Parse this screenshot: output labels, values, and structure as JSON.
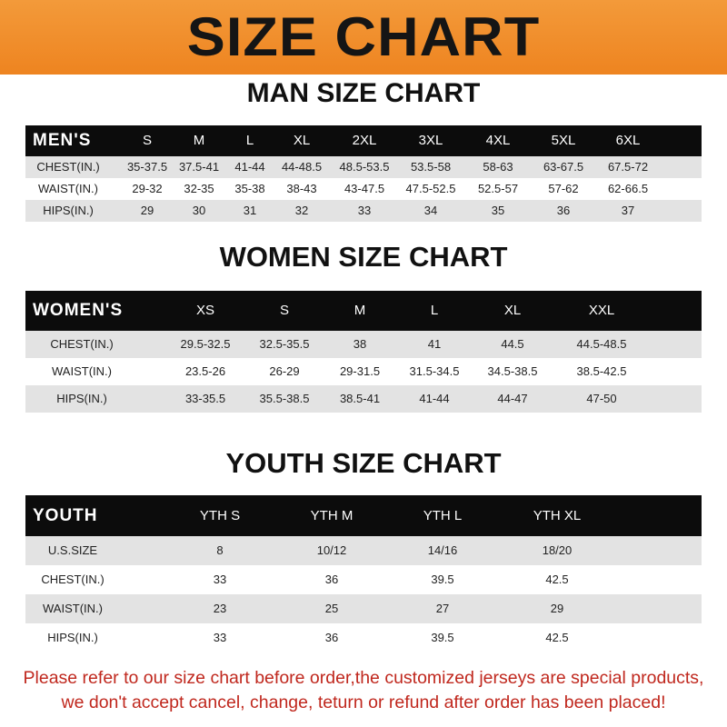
{
  "banner": {
    "title": "SIZE CHART",
    "color": "#ee8420"
  },
  "men": {
    "title": "MAN SIZE CHART",
    "header": [
      "MEN'S",
      "S",
      "M",
      "L",
      "XL",
      "2XL",
      "3XL",
      "4XL",
      "5XL",
      "6XL"
    ],
    "rows": [
      [
        "CHEST(IN.)",
        "35-37.5",
        "37.5-41",
        "41-44",
        "44-48.5",
        "48.5-53.5",
        "53.5-58",
        "58-63",
        "63-67.5",
        "67.5-72"
      ],
      [
        "WAIST(IN.)",
        "29-32",
        "32-35",
        "35-38",
        "38-43",
        "43-47.5",
        "47.5-52.5",
        "52.5-57",
        "57-62",
        "62-66.5"
      ],
      [
        "HIPS(IN.)",
        "29",
        "30",
        "31",
        "32",
        "33",
        "34",
        "35",
        "36",
        "37"
      ]
    ]
  },
  "women": {
    "title": "WOMEN SIZE CHART",
    "header": [
      "WOMEN'S",
      "XS",
      "S",
      "M",
      "L",
      "XL",
      "XXL"
    ],
    "rows": [
      [
        "CHEST(IN.)",
        "29.5-32.5",
        "32.5-35.5",
        "38",
        "41",
        "44.5",
        "44.5-48.5"
      ],
      [
        "WAIST(IN.)",
        "23.5-26",
        "26-29",
        "29-31.5",
        "31.5-34.5",
        "34.5-38.5",
        "38.5-42.5"
      ],
      [
        "HIPS(IN.)",
        "33-35.5",
        "35.5-38.5",
        "38.5-41",
        "41-44",
        "44-47",
        "47-50"
      ]
    ]
  },
  "youth": {
    "title": "YOUTH SIZE CHART",
    "header": [
      "YOUTH",
      "YTH S",
      "YTH M",
      "YTH L",
      "YTH XL"
    ],
    "rows": [
      [
        "U.S.SIZE",
        "8",
        "10/12",
        "14/16",
        "18/20"
      ],
      [
        "CHEST(IN.)",
        "33",
        "36",
        "39.5",
        "42.5"
      ],
      [
        "WAIST(IN.)",
        "23",
        "25",
        "27",
        "29"
      ],
      [
        "HIPS(IN.)",
        "33",
        "36",
        "39.5",
        "42.5"
      ]
    ]
  },
  "notice": {
    "line1": "Please refer to our size chart before order,the customized jerseys are special products,",
    "line2": "we don't accept cancel, change, teturn or refund after order has been placed!",
    "color": "#c0281e"
  }
}
